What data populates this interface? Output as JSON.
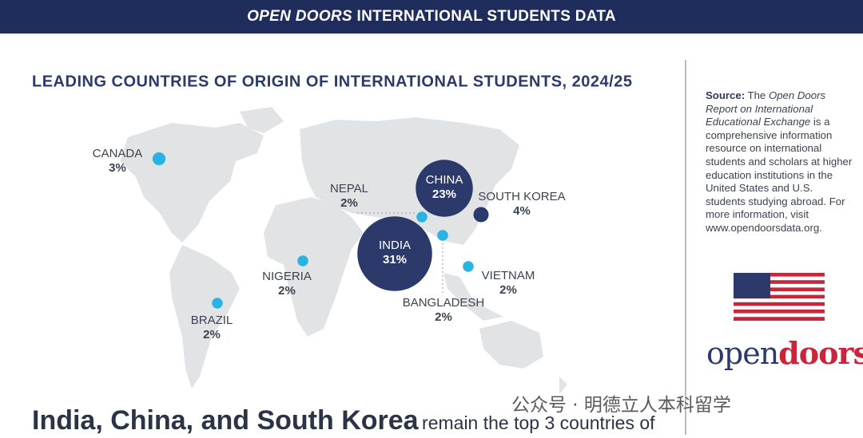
{
  "header": {
    "title_italic": "OPEN DOORS",
    "title_rest": "INTERNATIONAL STUDENTS DATA"
  },
  "chart_data": {
    "type": "bubble-map",
    "title": "LEADING COUNTRIES OF ORIGIN OF INTERNATIONAL STUDENTS, 2024/25",
    "categories": [
      "CANADA",
      "NEPAL",
      "CHINA",
      "SOUTH KOREA",
      "INDIA",
      "BANGLADESH",
      "VIETNAM",
      "NIGERIA",
      "BRAZIL"
    ],
    "values": [
      3,
      2,
      23,
      4,
      31,
      2,
      2,
      2,
      2
    ],
    "value_labels": [
      "3%",
      "2%",
      "23%",
      "4%",
      "31%",
      "2%",
      "2%",
      "2%",
      "2%"
    ],
    "colors": [
      "#29b3e3",
      "#29b3e3",
      "#2b3a6b",
      "#2b3a6b",
      "#2b3a6b",
      "#29b3e3",
      "#29b3e3",
      "#29b3e3",
      "#29b3e3"
    ]
  },
  "source": {
    "label": "Source:",
    "before": "The",
    "italic": "Open Doors Report on International Educational Exchange",
    "after": "is a comprehensive information resource on international students and scholars at higher education institutions in the United States and U.S. students studying abroad. For more information, visit www.opendoorsdata.org."
  },
  "logo": {
    "part1": "open",
    "part2": "doors"
  },
  "watermark": "公众号 · 明德立人本科留学",
  "footer": {
    "bold": "India, China, and South Korea",
    "rest": "remain the top 3 countries of"
  }
}
